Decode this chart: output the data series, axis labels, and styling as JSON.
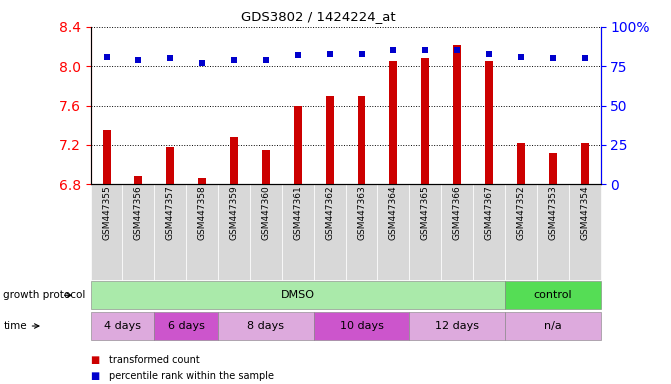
{
  "title": "GDS3802 / 1424224_at",
  "samples": [
    "GSM447355",
    "GSM447356",
    "GSM447357",
    "GSM447358",
    "GSM447359",
    "GSM447360",
    "GSM447361",
    "GSM447362",
    "GSM447363",
    "GSM447364",
    "GSM447365",
    "GSM447366",
    "GSM447367",
    "GSM447352",
    "GSM447353",
    "GSM447354"
  ],
  "transformed_count": [
    7.35,
    6.88,
    7.18,
    6.86,
    7.28,
    7.15,
    7.6,
    7.7,
    7.7,
    8.05,
    8.08,
    8.22,
    8.05,
    7.22,
    7.12,
    7.22
  ],
  "percentile_rank": [
    81,
    79,
    80,
    77,
    79,
    79,
    82,
    83,
    83,
    85,
    85,
    85,
    83,
    81,
    80,
    80
  ],
  "ylim_left": [
    6.8,
    8.4
  ],
  "ylim_right": [
    0,
    100
  ],
  "yticks_left": [
    6.8,
    7.2,
    7.6,
    8.0,
    8.4
  ],
  "yticks_right": [
    0,
    25,
    50,
    75,
    100
  ],
  "ytick_labels_right": [
    "0",
    "25",
    "50",
    "75",
    "100%"
  ],
  "bar_color": "#cc0000",
  "dot_color": "#0000cc",
  "background_color": "#ffffff",
  "tick_bg_color": "#d8d8d8",
  "groups_growth": [
    {
      "label": "DMSO",
      "start": 0,
      "end": 13,
      "color": "#aaeaaa"
    },
    {
      "label": "control",
      "start": 13,
      "end": 16,
      "color": "#55dd55"
    }
  ],
  "groups_time": [
    {
      "label": "4 days",
      "start": 0,
      "end": 2,
      "color": "#ddaadd"
    },
    {
      "label": "6 days",
      "start": 2,
      "end": 4,
      "color": "#cc55cc"
    },
    {
      "label": "8 days",
      "start": 4,
      "end": 7,
      "color": "#ddaadd"
    },
    {
      "label": "10 days",
      "start": 7,
      "end": 10,
      "color": "#cc55cc"
    },
    {
      "label": "12 days",
      "start": 10,
      "end": 13,
      "color": "#ddaadd"
    },
    {
      "label": "n/a",
      "start": 13,
      "end": 16,
      "color": "#ddaadd"
    }
  ],
  "legend_items": [
    {
      "label": "transformed count",
      "color": "#cc0000"
    },
    {
      "label": "percentile rank within the sample",
      "color": "#0000cc"
    }
  ],
  "xlabel_growth": "growth protocol",
  "xlabel_time": "time"
}
